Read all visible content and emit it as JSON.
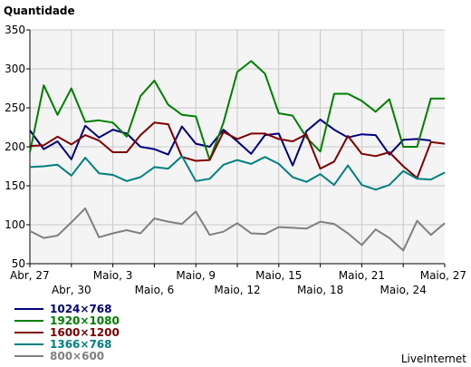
{
  "chart_data": {
    "type": "line",
    "title": "Quantidade",
    "x_tick_labels": [
      "Abr, 27",
      "Abr, 30",
      "Maio, 3",
      "Maio, 6",
      "Maio, 9",
      "Maio, 12",
      "Maio, 15",
      "Maio, 18",
      "Maio, 21",
      "Maio, 24",
      "Maio, 27"
    ],
    "x_count": 31,
    "ylim": [
      50,
      350
    ],
    "y_ticks": [
      50,
      100,
      150,
      200,
      250,
      300,
      350
    ],
    "grid": true,
    "legend_position": "bottom-left",
    "series": [
      {
        "name": "1024×768",
        "color": "#000080",
        "values": [
          221,
          197,
          207,
          184,
          227,
          212,
          222,
          217,
          200,
          197,
          190,
          226,
          204,
          200,
          222,
          207,
          191,
          215,
          217,
          176,
          220,
          235,
          222,
          212,
          216,
          215,
          190,
          209,
          210,
          208,
          null
        ]
      },
      {
        "name": "1920×1080",
        "color": "#008000",
        "values": [
          193,
          279,
          241,
          275,
          232,
          234,
          231,
          213,
          265,
          285,
          254,
          241,
          239,
          183,
          231,
          296,
          310,
          294,
          243,
          240,
          212,
          194,
          268,
          268,
          259,
          245,
          261,
          200,
          200,
          262,
          262
        ]
      },
      {
        "name": "1600×1200",
        "color": "#800000",
        "values": [
          201,
          202,
          213,
          203,
          215,
          208,
          193,
          193,
          215,
          231,
          229,
          187,
          182,
          183,
          219,
          210,
          217,
          217,
          210,
          207,
          216,
          172,
          181,
          214,
          191,
          188,
          193,
          175,
          160,
          206,
          204
        ]
      },
      {
        "name": "1366×768",
        "color": "#008080",
        "values": [
          174,
          175,
          177,
          163,
          186,
          166,
          164,
          156,
          161,
          174,
          172,
          188,
          156,
          159,
          177,
          183,
          178,
          187,
          178,
          161,
          155,
          165,
          151,
          176,
          151,
          145,
          151,
          169,
          159,
          158,
          167
        ]
      },
      {
        "name": "800×600",
        "color": "#808080",
        "values": [
          92,
          83,
          86,
          103,
          121,
          84,
          89,
          93,
          89,
          108,
          104,
          101,
          117,
          87,
          91,
          102,
          89,
          88,
          97,
          96,
          95,
          104,
          101,
          89,
          74,
          94,
          83,
          67,
          105,
          87,
          102
        ]
      }
    ]
  },
  "footer": {
    "brand": "LiveInternet"
  },
  "colors": {
    "plot_background": "#f4f4f4",
    "grid": "#c8c8c8"
  }
}
